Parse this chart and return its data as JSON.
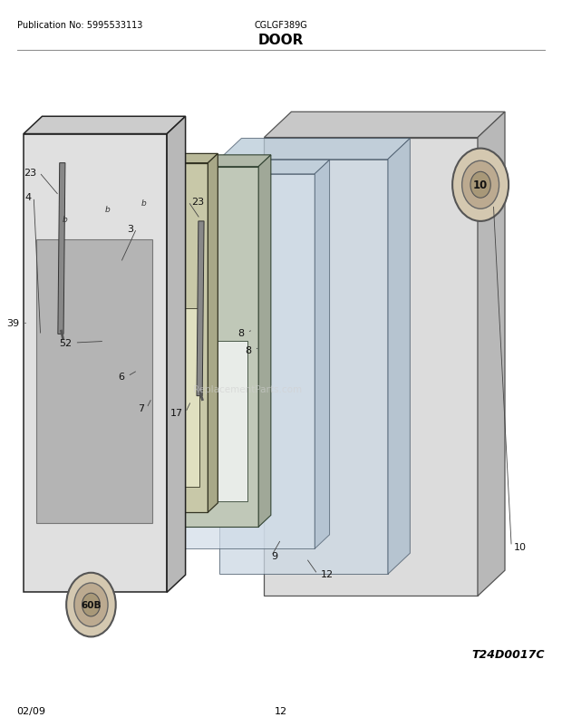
{
  "title": "DOOR",
  "pub_no": "Publication No: 5995533113",
  "model": "CGLGF389G",
  "date": "02/09",
  "page": "12",
  "diagram_code": "T24D0017C",
  "bg_color": "#ffffff",
  "text_color": "#000000",
  "figsize": [
    6.2,
    8.03
  ],
  "dpi": 100
}
